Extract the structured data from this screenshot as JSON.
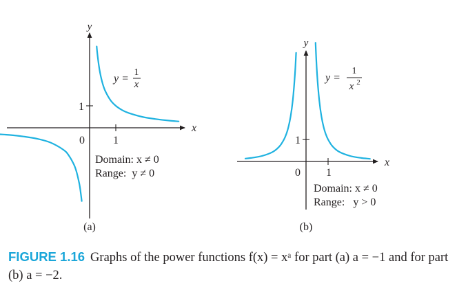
{
  "colors": {
    "curve": "#1fb2e0",
    "axis": "#231f20",
    "caption_label": "#1aa6d9"
  },
  "chart_data": [
    {
      "type": "line",
      "function": "y = 1/x",
      "equation": {
        "lhs": "y =",
        "numerator": "1",
        "denominator": "x"
      },
      "panel_label": "(a)",
      "xlabel": "x",
      "ylabel": "y",
      "origin_label": "0",
      "x_ticks": [
        "1"
      ],
      "y_ticks": [
        "1"
      ],
      "xlim": [
        -3.55,
        3.65
      ],
      "ylim": [
        -3.6,
        4.0
      ],
      "annotations": [
        "Domain: x ≠ 0",
        "Range:  y ≠ 0"
      ],
      "series": [
        {
          "x": [
            0.27,
            0.3,
            0.35,
            0.4,
            0.5,
            0.6,
            0.8,
            1,
            1.25,
            1.5,
            2,
            2.5,
            3,
            3.4
          ],
          "y": [
            3.7,
            3.33,
            2.86,
            2.5,
            2,
            1.67,
            1.25,
            1,
            0.8,
            0.67,
            0.5,
            0.4,
            0.33,
            0.29
          ]
        },
        {
          "x": [
            -3.5,
            -3,
            -2.5,
            -2,
            -1.5,
            -1,
            -0.8,
            -0.6,
            -0.5,
            -0.4,
            -0.35,
            -0.3
          ],
          "y": [
            -0.29,
            -0.33,
            -0.4,
            -0.5,
            -0.67,
            -1,
            -1.25,
            -1.67,
            -2,
            -2.5,
            -2.86,
            -3.33
          ]
        }
      ]
    },
    {
      "type": "line",
      "function": "y = 1/x^2",
      "equation": {
        "lhs": "y =",
        "numerator": "1",
        "denominator": "x",
        "exponent": "2"
      },
      "panel_label": "(b)",
      "xlabel": "x",
      "ylabel": "y",
      "origin_label": "0",
      "x_ticks": [
        "1"
      ],
      "y_ticks": [
        "1"
      ],
      "xlim": [
        -2.85,
        3.5
      ],
      "ylim": [
        -2.7,
        5.4
      ],
      "annotations": [
        "Domain: x ≠ 0",
        "Range:   y > 0"
      ],
      "series": [
        {
          "x": [
            0.43,
            0.5,
            0.6,
            0.7,
            0.8,
            0.9,
            1,
            1.2,
            1.5,
            2,
            2.5,
            2.9
          ],
          "y": [
            5.4,
            4,
            2.78,
            2.04,
            1.56,
            1.23,
            1,
            0.69,
            0.44,
            0.25,
            0.16,
            0.12
          ]
        },
        {
          "x": [
            -2.75,
            -2.5,
            -2,
            -1.5,
            -1.2,
            -1,
            -0.9,
            -0.8,
            -0.7,
            -0.6,
            -0.5,
            -0.45
          ],
          "y": [
            0.13,
            0.16,
            0.25,
            0.44,
            0.69,
            1,
            1.23,
            1.56,
            2.04,
            2.78,
            4,
            4.94
          ]
        }
      ]
    }
  ],
  "caption": {
    "label": "FIGURE 1.16",
    "text": "Graphs of the power functions f(x) = xᵃ for part (a) a = −1 and for part (b) a = −2."
  }
}
